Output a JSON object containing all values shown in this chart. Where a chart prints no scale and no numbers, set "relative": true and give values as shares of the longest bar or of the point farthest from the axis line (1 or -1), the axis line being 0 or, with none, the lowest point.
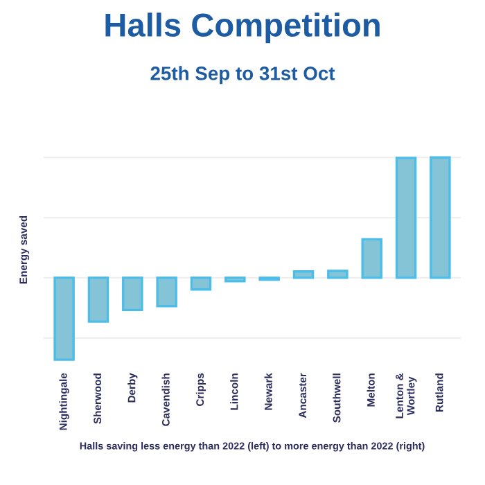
{
  "chart_data": {
    "type": "bar",
    "title": "Halls Competition",
    "subtitle": "25th Sep to 31st Oct",
    "xlabel": "Halls saving less energy than 2022 (left) to more energy than 2022 (right)",
    "ylabel": "Energy saved",
    "categories": [
      "Nightingale",
      "Sherwood",
      "Derby",
      "Cavendish",
      "Cripps",
      "Lincoln",
      "Newark",
      "Ancaster",
      "Southwell",
      "Melton",
      "Lenton &\nWortley",
      "Rutland"
    ],
    "values": [
      -0.68,
      -0.364,
      -0.267,
      -0.235,
      -0.097,
      -0.028,
      -0.016,
      0.053,
      0.057,
      0.32,
      0.996,
      1
    ],
    "color": "#85c4d6",
    "relative": true,
    "grid": "y"
  }
}
